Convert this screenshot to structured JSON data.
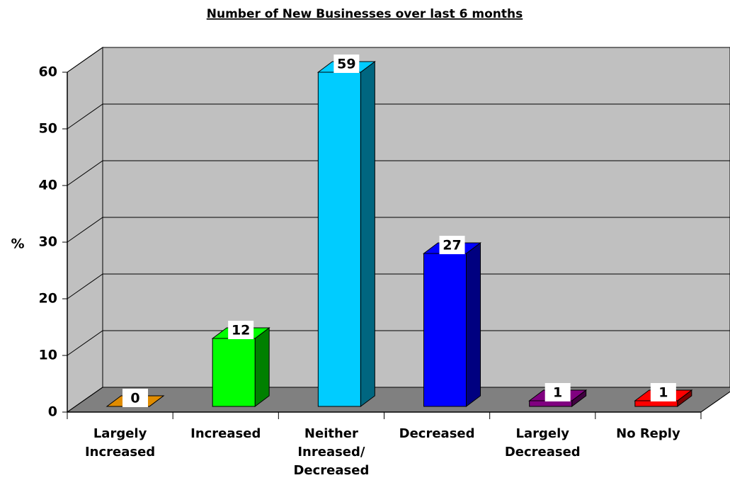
{
  "chart_data": {
    "type": "bar3d",
    "title": "Number of New Businesses over last 6 months",
    "y_label": "%",
    "categories": [
      "Largely Increased",
      "Increased",
      "Neither Inreased/ Decreased",
      "Decreased",
      "Largely Decreased",
      "No Reply"
    ],
    "values": [
      0,
      12,
      59,
      27,
      1,
      1
    ],
    "colors": [
      "#e08c00",
      "#00ff00",
      "#00ccff",
      "#0000ff",
      "#800080",
      "#ff0000"
    ],
    "ylim": [
      0,
      60
    ],
    "yticks": [
      0,
      10,
      20,
      30,
      40,
      50,
      60
    ],
    "grid": true
  }
}
